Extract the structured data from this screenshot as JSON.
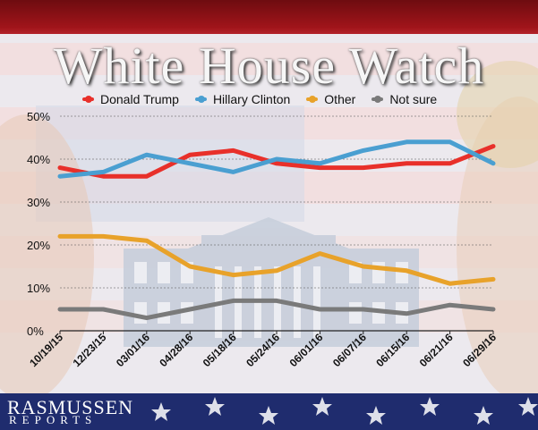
{
  "title": "White House Watch",
  "logo": {
    "main": "RASMUSSEN",
    "sub": "REPORTS"
  },
  "colors": {
    "trump": "#e8302a",
    "clinton": "#4a9fd1",
    "other": "#e8a22a",
    "notsure": "#7a7a7a"
  },
  "chart_data": {
    "type": "line",
    "title": "White House Watch",
    "categories": [
      "10/19/15",
      "12/23/15",
      "03/01/16",
      "04/28/16",
      "05/18/16",
      "05/24/16",
      "06/01/16",
      "06/07/16",
      "06/15/16",
      "06/21/16",
      "06/29/16"
    ],
    "y_ticks": [
      "0%",
      "10%",
      "20%",
      "30%",
      "40%",
      "50%"
    ],
    "ylim": [
      0,
      50
    ],
    "grid": true,
    "legend_position": "top",
    "series": [
      {
        "name": "Donald Trump",
        "color": "#e8302a",
        "values": [
          38,
          36,
          36,
          41,
          42,
          39,
          38,
          38,
          39,
          39,
          43
        ]
      },
      {
        "name": "Hillary Clinton",
        "color": "#4a9fd1",
        "values": [
          36,
          37,
          41,
          39,
          37,
          40,
          39,
          42,
          44,
          44,
          39
        ]
      },
      {
        "name": "Other",
        "color": "#e8a22a",
        "values": [
          22,
          22,
          21,
          15,
          13,
          14,
          18,
          15,
          14,
          11,
          12
        ]
      },
      {
        "name": "Not sure",
        "color": "#7a7a7a",
        "values": [
          5,
          5,
          3,
          5,
          7,
          7,
          5,
          5,
          4,
          6,
          5
        ]
      }
    ]
  }
}
